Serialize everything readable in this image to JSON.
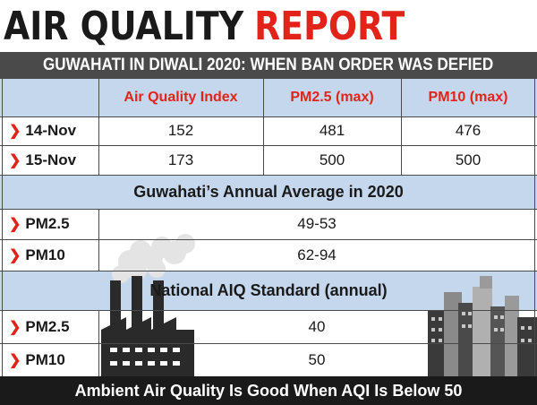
{
  "title": {
    "part1": "AIR QUALITY",
    "part2": "REPORT"
  },
  "subtitle": "GUWAHATI IN DIWALI 2020: WHEN BAN ORDER WAS DEFIED",
  "colors": {
    "accent_red": "#e2231a",
    "band_blue": "#c5d7ec",
    "dark": "#1a1a1a",
    "subtitle_bg": "#4a4a4a"
  },
  "chart_data": {
    "type": "table",
    "diwali_table": {
      "columns": [
        "Air Quality Index",
        "PM2.5 (max)",
        "PM10 (max)"
      ],
      "rows": [
        {
          "label": "14-Nov",
          "values": [
            "152",
            "481",
            "476"
          ]
        },
        {
          "label": "15-Nov",
          "values": [
            "173",
            "500",
            "500"
          ]
        }
      ]
    },
    "annual_average": {
      "title": "Guwahati’s Annual Average in 2020",
      "rows": [
        {
          "label": "PM2.5",
          "value": "49-53"
        },
        {
          "label": "PM10",
          "value": "62-94"
        }
      ]
    },
    "national_standard": {
      "title": "National AIQ Standard (annual)",
      "rows": [
        {
          "label": "PM2.5",
          "value": "40"
        },
        {
          "label": "PM10",
          "value": "50"
        }
      ]
    }
  },
  "footer": "Ambient Air Quality Is Good When AQI Is Below 50",
  "icons": {
    "row_marker": "chevron-right-icon",
    "factory": "factory-icon",
    "city": "city-skyline-icon"
  }
}
